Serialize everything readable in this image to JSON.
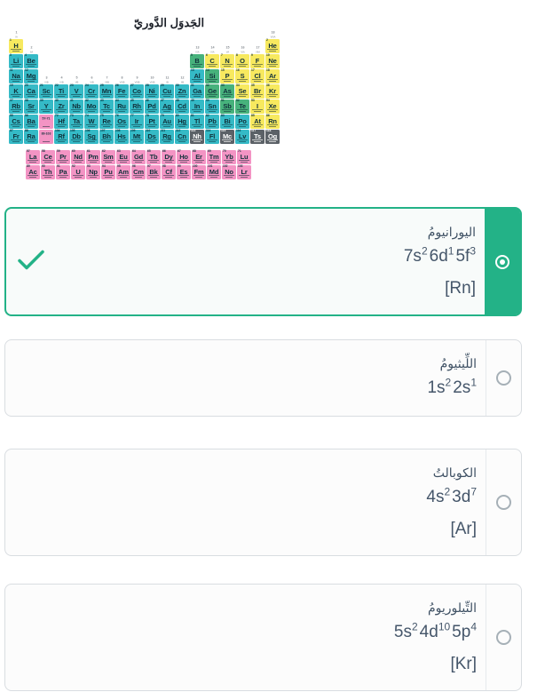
{
  "periodic_table": {
    "title": "الجَدوَل الدَّوريّ",
    "colors": {
      "metal": "#35bac6",
      "nonmetal": "#f7e95f",
      "metalloid": "#47b27c",
      "f_block": "#f394c4",
      "unknown": "#5b6167"
    },
    "rows": [
      [
        "1:1:H:nm",
        "18:2:He:nm"
      ],
      [
        "1:3:Li:m",
        "2:4:Be:m",
        "13:5:B:md",
        "14:6:C:nm",
        "15:7:N:nm",
        "16:8:O:nm",
        "17:9:F:nm",
        "18:10:Ne:nm"
      ],
      [
        "1:11:Na:m",
        "2:12:Mg:m",
        "13:13:Al:m",
        "14:14:Si:md",
        "15:15:P:nm",
        "16:16:S:nm",
        "17:17:Cl:nm",
        "18:18:Ar:nm"
      ],
      [
        "1:19:K:m",
        "2:20:Ca:m",
        "3:21:Sc:m",
        "4:22:Ti:m",
        "5:23:V:m",
        "6:24:Cr:m",
        "7:25:Mn:m",
        "8:26:Fe:m",
        "9:27:Co:m",
        "10:28:Ni:m",
        "11:29:Cu:m",
        "12:30:Zn:m",
        "13:31:Ga:m",
        "14:32:Ge:md",
        "15:33:As:md",
        "16:34:Se:nm",
        "17:35:Br:nm",
        "18:36:Kr:nm"
      ],
      [
        "1:37:Rb:m",
        "2:38:Sr:m",
        "3:39:Y:m",
        "4:40:Zr:m",
        "5:41:Nb:m",
        "6:42:Mo:m",
        "7:43:Tc:m",
        "8:44:Ru:m",
        "9:45:Rh:m",
        "10:46:Pd:m",
        "11:47:Ag:m",
        "12:48:Cd:m",
        "13:49:In:m",
        "14:50:Sn:m",
        "15:51:Sb:md",
        "16:52:Te:md",
        "17:53:I:nm",
        "18:54:Xe:nm"
      ],
      [
        "1:55:Cs:m",
        "2:56:Ba:m",
        "4:72:Hf:m",
        "5:73:Ta:m",
        "6:74:W:m",
        "7:75:Re:m",
        "8:76:Os:m",
        "9:77:Ir:m",
        "10:78:Pt:m",
        "11:79:Au:m",
        "12:80:Hg:m",
        "13:81:Tl:m",
        "14:82:Pb:m",
        "15:83:Bi:m",
        "16:84:Po:m",
        "17:85:At:nm",
        "18:86:Rn:nm"
      ],
      [
        "1:87:Fr:m",
        "2:88:Ra:m",
        "4:104:Rf:m",
        "5:105:Db:m",
        "6:106:Sg:m",
        "7:107:Bh:m",
        "8:108:Hs:m",
        "9:109:Mt:m",
        "10:110:Ds:m",
        "11:111:Rg:m",
        "12:112:Cn:m",
        "13:113:Nh:uk",
        "14:114:Fl:m",
        "15:115:Mc:uk",
        "16:116:Lv:m",
        "17:117:Ts:uk",
        "18:118:Og:uk"
      ]
    ],
    "f_block": [
      [
        "57:La",
        "58:Ce",
        "59:Pr",
        "60:Nd",
        "61:Pm",
        "62:Sm",
        "63:Eu",
        "64:Gd",
        "65:Tb",
        "66:Dy",
        "67:Ho",
        "68:Er",
        "69:Tm",
        "70:Yb",
        "71:Lu"
      ],
      [
        "89:Ac",
        "90:Th",
        "91:Pa",
        "92:U",
        "93:Np",
        "94:Pu",
        "95:Am",
        "96:Cm",
        "97:Bk",
        "98:Cf",
        "99:Es",
        "100:Fm",
        "101:Md",
        "102:No",
        "103:Lr"
      ]
    ],
    "placeholders": [
      {
        "col": 3,
        "row": 5,
        "label": "57-71"
      },
      {
        "col": 3,
        "row": 6,
        "label": "89-103"
      }
    ],
    "group_labels": [
      {
        "col": 1,
        "row": 0,
        "num": "1",
        "roman": "IA"
      },
      {
        "col": 2,
        "row": 1,
        "num": "2",
        "roman": "IIA"
      },
      {
        "col": 3,
        "row": 3,
        "num": "3",
        "roman": "IIIB"
      },
      {
        "col": 4,
        "row": 3,
        "num": "4",
        "roman": "IVB"
      },
      {
        "col": 5,
        "row": 3,
        "num": "5",
        "roman": "VB"
      },
      {
        "col": 6,
        "row": 3,
        "num": "6",
        "roman": "VIB"
      },
      {
        "col": 7,
        "row": 3,
        "num": "7",
        "roman": "VIIB"
      },
      {
        "col": 8,
        "row": 3,
        "num": "8",
        "roman": "VIIIB"
      },
      {
        "col": 9,
        "row": 3,
        "num": "9",
        "roman": "VIIIB"
      },
      {
        "col": 10,
        "row": 3,
        "num": "10",
        "roman": "VIIIB"
      },
      {
        "col": 11,
        "row": 3,
        "num": "11",
        "roman": "IB"
      },
      {
        "col": 12,
        "row": 3,
        "num": "12",
        "roman": "IIB"
      },
      {
        "col": 13,
        "row": 1,
        "num": "13",
        "roman": "IIIA"
      },
      {
        "col": 14,
        "row": 1,
        "num": "14",
        "roman": "IVA"
      },
      {
        "col": 15,
        "row": 1,
        "num": "15",
        "roman": "VA"
      },
      {
        "col": 16,
        "row": 1,
        "num": "16",
        "roman": "VIA"
      },
      {
        "col": 17,
        "row": 1,
        "num": "17",
        "roman": "VIIA"
      },
      {
        "col": 18,
        "row": 0,
        "num": "18",
        "roman": "VIIIA"
      }
    ]
  },
  "question": {
    "accent_color": "#23b287",
    "options": [
      {
        "name": "اليورانيومُ",
        "config": [
          [
            "7s",
            "2"
          ],
          [
            "6d",
            "1"
          ],
          [
            "5f",
            "3"
          ]
        ],
        "core": "[Rn]",
        "selected": true
      },
      {
        "name": "اللِّيثيومُ",
        "config": [
          [
            "1s",
            "2"
          ],
          [
            "2s",
            "1"
          ]
        ],
        "core": "",
        "selected": false
      },
      {
        "name": "الكوبالتُ",
        "config": [
          [
            "4s",
            "2"
          ],
          [
            "3d",
            "7"
          ]
        ],
        "core": "[Ar]",
        "selected": false
      },
      {
        "name": "التِّيلوريومُ",
        "config": [
          [
            "5s",
            "2"
          ],
          [
            "4d",
            "10"
          ],
          [
            "5p",
            "4"
          ]
        ],
        "core": "[Kr]",
        "selected": false
      }
    ]
  }
}
